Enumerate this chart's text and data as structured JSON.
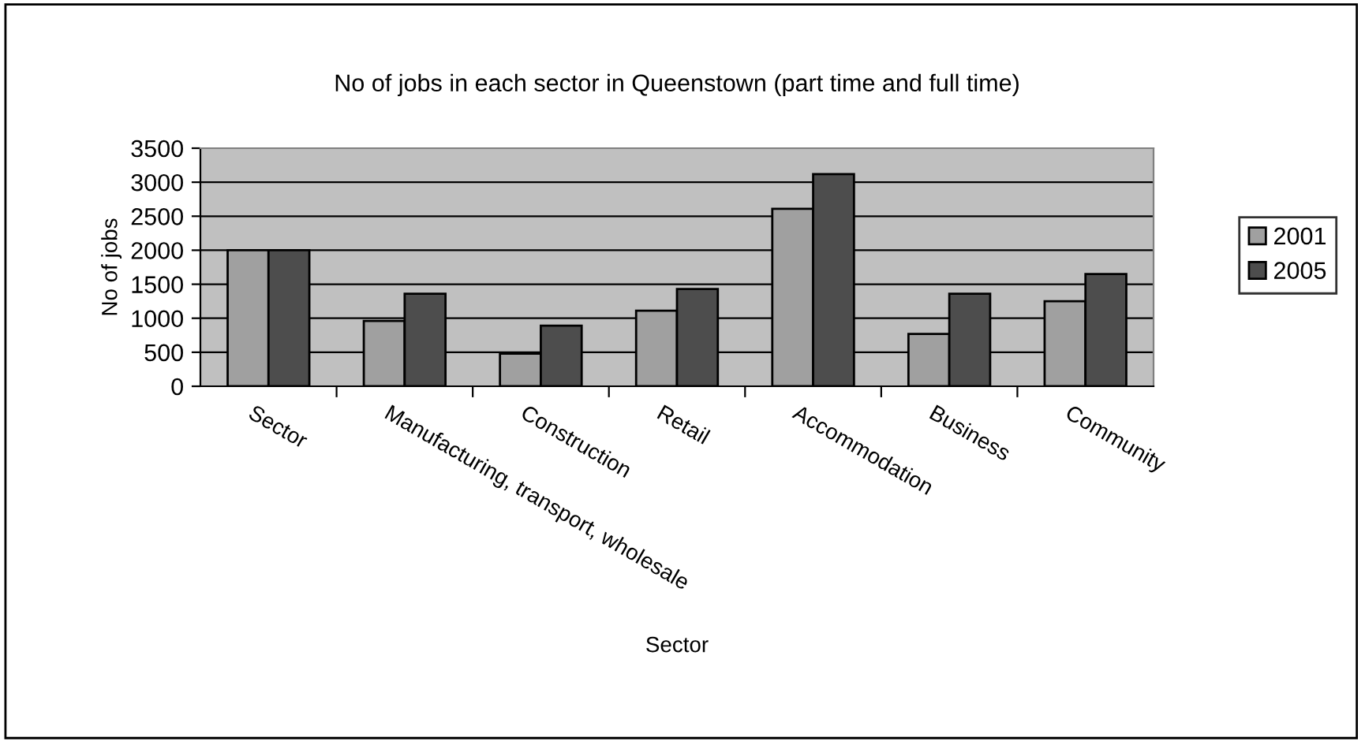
{
  "chart_data": {
    "type": "bar",
    "title": "No of jobs in each sector in Queenstown (part time and full time)",
    "xlabel": "Sector",
    "ylabel": "No of jobs",
    "categories": [
      "Sector",
      "Manufacturing, transport, wholesale",
      "Construction",
      "Retail",
      "Accommodation",
      "Business",
      "Community"
    ],
    "series": [
      {
        "name": "2001",
        "color": "#a0a0a0",
        "values": [
          2000,
          960,
          480,
          1110,
          2610,
          770,
          1250
        ]
      },
      {
        "name": "2005",
        "color": "#4d4d4d",
        "values": [
          2000,
          1360,
          890,
          1430,
          3120,
          1360,
          1650
        ]
      }
    ],
    "ylim": [
      0,
      3500
    ],
    "yticks": [
      0,
      500,
      1000,
      1500,
      2000,
      2500,
      3000,
      3500
    ],
    "grid": "y",
    "legend": "right"
  }
}
